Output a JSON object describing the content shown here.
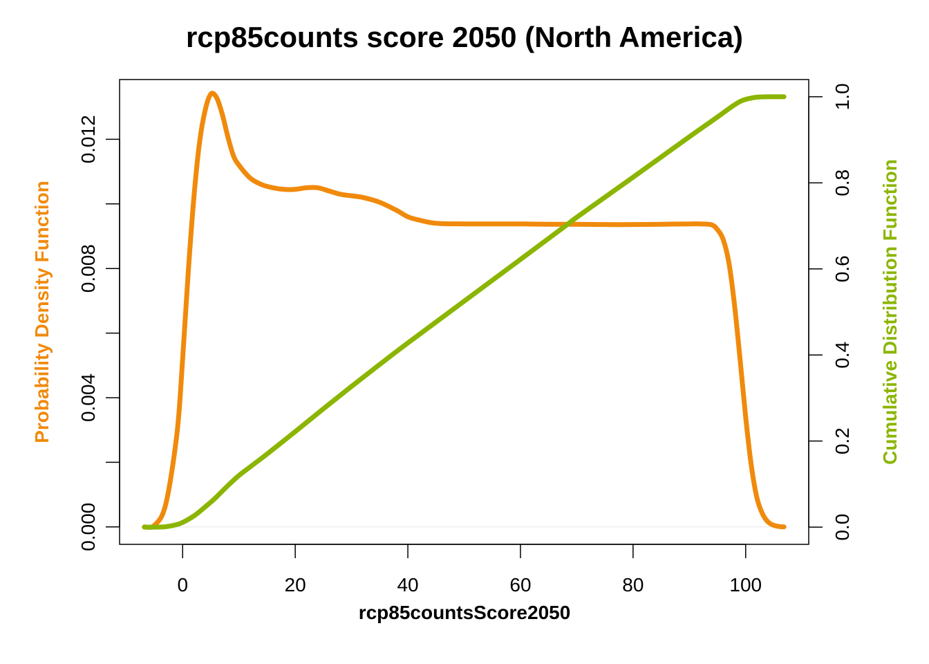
{
  "chart_data": {
    "type": "line",
    "title": "rcp85counts score 2050 (North America)",
    "xlabel": "rcp85countsScore2050",
    "ylabel_left": "Probability Density Function",
    "ylabel_right": "Cumulative Distribution Function",
    "xlim": [
      -11.2,
      111.2
    ],
    "ylim_left": [
      -0.00054,
      0.01385
    ],
    "ylim_right": [
      -0.04,
      1.04
    ],
    "x_ticks": [
      0,
      20,
      40,
      60,
      80,
      100
    ],
    "x_tick_labels": [
      "0",
      "20",
      "40",
      "60",
      "80",
      "100"
    ],
    "y_left_ticks": [
      0,
      0.002,
      0.004,
      0.006,
      0.008,
      0.01,
      0.012
    ],
    "y_left_tick_labels": [
      "0.000",
      "",
      "0.004",
      "",
      "0.008",
      "",
      "0.012"
    ],
    "y_right_ticks": [
      0,
      0.2,
      0.4,
      0.6,
      0.8,
      1.0
    ],
    "y_right_tick_labels": [
      "0.0",
      "0.2",
      "0.4",
      "0.6",
      "0.8",
      "1.0"
    ],
    "grid": false,
    "series": [
      {
        "name": "Probability Density Function",
        "axis": "left",
        "color": "#f08a0c",
        "x": [
          -6.8,
          -5,
          -3,
          -1,
          0,
          1,
          2,
          3,
          4,
          5,
          6,
          7,
          8,
          9,
          10,
          12,
          14,
          16,
          18,
          20,
          22,
          24,
          26,
          28,
          30,
          32,
          35,
          38,
          40,
          42,
          45,
          50,
          55,
          60,
          65,
          70,
          75,
          80,
          85,
          90,
          92,
          94,
          95,
          96,
          97,
          98,
          99,
          100,
          101,
          102,
          103,
          104,
          105,
          106,
          106.8
        ],
        "y": [
          0,
          5e-05,
          0.0007,
          0.0029,
          0.0052,
          0.0079,
          0.0102,
          0.0119,
          0.0129,
          0.0134,
          0.0133,
          0.0128,
          0.0121,
          0.0115,
          0.0112,
          0.0108,
          0.0106,
          0.0105,
          0.01045,
          0.01045,
          0.0105,
          0.0105,
          0.0104,
          0.0103,
          0.01025,
          0.0102,
          0.01005,
          0.0098,
          0.0096,
          0.0095,
          0.0094,
          0.00938,
          0.00938,
          0.00938,
          0.00937,
          0.00937,
          0.00936,
          0.00936,
          0.00937,
          0.00938,
          0.00938,
          0.00935,
          0.0092,
          0.0089,
          0.0082,
          0.0069,
          0.0052,
          0.0034,
          0.0019,
          0.0009,
          0.0004,
          0.00015,
          5e-05,
          1e-05,
          0
        ]
      },
      {
        "name": "Cumulative Distribution Function",
        "axis": "right",
        "color": "#8bb500",
        "x": [
          -6.8,
          -5,
          -3,
          -1,
          0,
          1,
          2,
          3,
          4,
          5,
          6,
          8,
          10,
          12,
          15,
          20,
          25,
          30,
          35,
          40,
          50,
          60,
          68,
          70,
          80,
          90,
          95,
          97,
          98,
          99,
          100,
          101,
          102,
          104,
          106.8
        ],
        "y": [
          0,
          0,
          0.001,
          0.006,
          0.011,
          0.018,
          0.026,
          0.036,
          0.047,
          0.058,
          0.07,
          0.096,
          0.12,
          0.14,
          0.17,
          0.222,
          0.275,
          0.327,
          0.378,
          0.428,
          0.525,
          0.622,
          0.7,
          0.72,
          0.813,
          0.907,
          0.953,
          0.972,
          0.981,
          0.989,
          0.994,
          0.997,
          0.999,
          1.0,
          1.0
        ]
      }
    ]
  }
}
